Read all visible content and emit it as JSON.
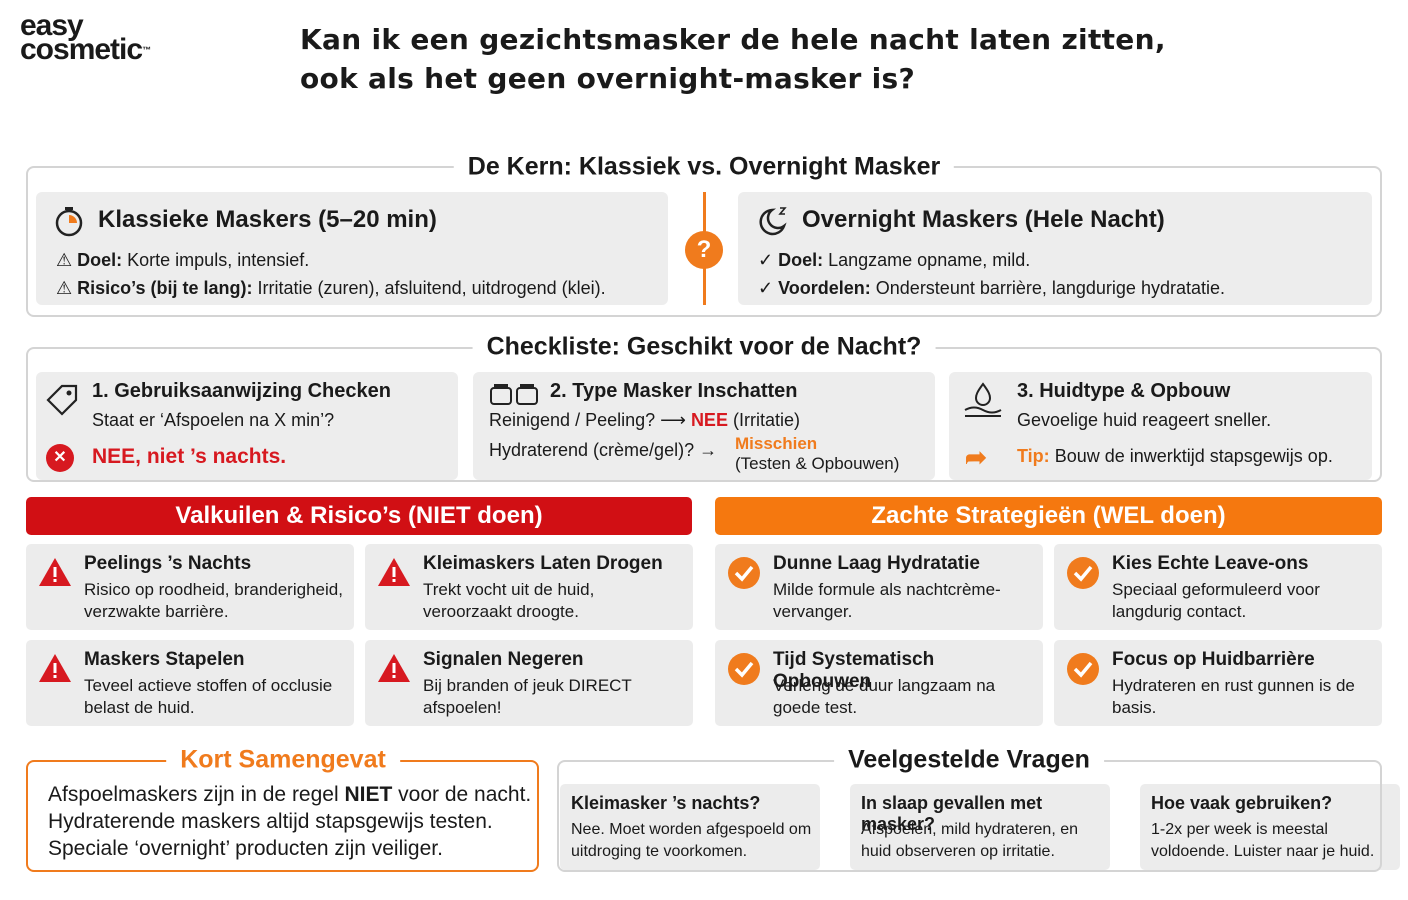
{
  "brand": {
    "line1": "easy",
    "line2": "cosmetic",
    "tm": "™"
  },
  "title": "Kan ik een gezichtsmasker de hele nacht laten zitten, ook als het geen overnight-masker is?",
  "core": {
    "heading": "De Kern: Klassiek vs. Overnight Masker",
    "classic": {
      "title": "Klassieke Maskers (5–20 min)",
      "items": [
        {
          "label": "Doel:",
          "text": "Korte impuls, intensief."
        },
        {
          "label": "Risico’s (bij te lang):",
          "text": "Irritatie (zuren), afsluitend, uitdrogend (klei)."
        }
      ]
    },
    "divider": "?",
    "overnight": {
      "title": "Overnight Maskers (Hele Nacht)",
      "items": [
        {
          "label": "Doel:",
          "text": "Langzame opname, mild."
        },
        {
          "label": "Voordelen:",
          "text": "Ondersteunt barrière, langdurige hydratatie."
        }
      ]
    }
  },
  "checklist": {
    "heading": "Checkliste: Geschikt voor de Nacht?",
    "card1": {
      "title": "1. Gebruiksaanwijzing Checken",
      "text": "Staat er ‘Afspoelen na X min’?",
      "verdict": "NEE, niet ’s nachts."
    },
    "card2": {
      "title": "2. Type Masker Inschatten",
      "rows": [
        {
          "question": "Reinigend / Peeling?",
          "result": "NEE",
          "note": "(Irritatie)"
        },
        {
          "question": "Hydraterend (crème/gel)?",
          "result": "Misschien",
          "note": "(Testen & Opbouwen)"
        }
      ]
    },
    "card3": {
      "title": "3. Huidtype & Opbouw",
      "text": "Gevoelige huid reageert sneller.",
      "tip_label": "Tip:",
      "tip_text": "Bouw de inwerktijd stapsgewijs op."
    }
  },
  "pitfalls": {
    "heading": "Valkuilen & Risico’s (NIET doen)",
    "items": [
      {
        "title": "Peelings ’s Nachts",
        "text": "Risico op roodheid, branderigheid, verzwakte barrière."
      },
      {
        "title": "Kleimaskers Laten Drogen",
        "text": "Trekt vocht uit de huid, veroorzaakt droogte."
      },
      {
        "title": "Maskers Stapelen",
        "text": "Teveel actieve stoffen of occlusie belast de huid."
      },
      {
        "title": "Signalen Negeren",
        "text": "Bij branden of jeuk DIRECT afspoelen!"
      }
    ]
  },
  "strategies": {
    "heading": "Zachte Strategieën (WEL doen)",
    "items": [
      {
        "title": "Dunne Laag Hydratatie",
        "text": "Milde formule als nachtcrème-vervanger."
      },
      {
        "title": "Kies Echte Leave-ons",
        "text": "Speciaal geformuleerd voor langdurig contact."
      },
      {
        "title": "Tijd Systematisch Opbouwen",
        "text": "Verleng de duur langzaam na goede test."
      },
      {
        "title": "Focus op Huidbarrière",
        "text": "Hydrateren en rust gunnen is de basis."
      }
    ]
  },
  "summary": {
    "heading": "Kort Samengevat",
    "line1": {
      "before": "Afspoelmaskers zijn in de regel",
      "bold": "NIET",
      "after": "voor de nacht."
    },
    "line2": "Hydraterende maskers altijd stapsgewijs testen.",
    "line3": "Speciale ‘overnight’ producten zijn veiliger."
  },
  "faq": {
    "heading": "Veelgestelde Vragen",
    "items": [
      {
        "question": "Kleimasker ’s nachts?",
        "answer": "Nee. Moet worden afgespoeld om uitdroging te voorkomen."
      },
      {
        "question": "In slaap gevallen met masker?",
        "answer": "Afspoelen, mild hydrateren, en huid observeren op irritatie."
      },
      {
        "question": "Hoe vaak gebruiken?",
        "answer": "1-2x per week is meestal voldoende. Luister naar je huid."
      }
    ]
  }
}
